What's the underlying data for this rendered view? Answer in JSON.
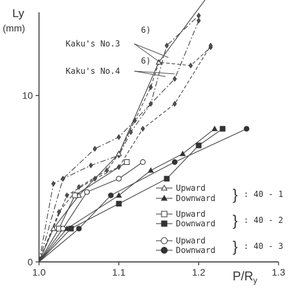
{
  "chart_data": {
    "type": "line",
    "ylabel_top": "Ly",
    "ylabel_unit": "(mm)",
    "xlabel": "P/R",
    "xlabel_sub": "y",
    "xlim": [
      1.0,
      1.3
    ],
    "ylim": [
      0,
      15
    ],
    "x_ticks": [
      {
        "v": 1.0,
        "label": "1.0"
      },
      {
        "v": 1.1,
        "label": "1.1"
      },
      {
        "v": 1.2,
        "label": "1.2"
      },
      {
        "v": 1.3,
        "label": "1.3"
      }
    ],
    "y_ticks": [
      {
        "v": 0,
        "label": "0"
      },
      {
        "v": 10,
        "label": "10"
      }
    ],
    "annotations": [
      {
        "text": "Kaku's No.3",
        "sup": "6)"
      },
      {
        "text": "Kaku's No.4",
        "sup": "6)"
      }
    ],
    "legend": {
      "groups": [
        {
          "label": ": 40 - 1",
          "upward": "Upward",
          "downward": "Downward"
        },
        {
          "label": ": 40 - 2",
          "upward": "Upward",
          "downward": "Downward"
        },
        {
          "label": ": 40 - 3",
          "upward": "Upward",
          "downward": "Downward"
        }
      ]
    },
    "series": [
      {
        "key": "k3a",
        "marker": "diamond",
        "dash": "8 3 2 3",
        "points": [
          [
            1.0,
            0
          ],
          [
            1.018,
            4.7
          ],
          [
            1.03,
            5.0
          ],
          [
            1.065,
            5.8
          ],
          [
            1.1,
            6.4
          ],
          [
            1.115,
            7.8
          ],
          [
            1.14,
            9.5
          ],
          [
            1.16,
            13.0
          ],
          [
            1.2,
            14.8
          ]
        ]
      },
      {
        "key": "k3b",
        "marker": "diamond",
        "dash": "8 3 2 3",
        "points": [
          [
            1.0,
            0
          ],
          [
            1.03,
            5.0
          ],
          [
            1.07,
            6.8
          ],
          [
            1.1,
            7.5
          ],
          [
            1.12,
            8.5
          ],
          [
            1.17,
            11.0
          ],
          [
            1.2,
            14.5
          ]
        ]
      },
      {
        "key": "k4a",
        "marker": "diamond",
        "dash": "5 3",
        "points": [
          [
            1.0,
            0
          ],
          [
            1.025,
            3.0
          ],
          [
            1.05,
            4.5
          ],
          [
            1.085,
            5.5
          ],
          [
            1.1,
            6.5
          ],
          [
            1.14,
            10.5
          ],
          [
            1.15,
            12.0
          ],
          [
            1.19,
            11.8
          ],
          [
            1.215,
            12.9
          ]
        ]
      },
      {
        "key": "k4b",
        "marker": "diamond",
        "dash": "5 3",
        "points": [
          [
            1.0,
            0
          ],
          [
            1.035,
            4.0
          ],
          [
            1.07,
            5.0
          ],
          [
            1.1,
            5.7
          ],
          [
            1.13,
            8.0
          ],
          [
            1.17,
            9.5
          ],
          [
            1.215,
            13.0
          ]
        ]
      },
      {
        "key": "s1u",
        "marker": "tri-open",
        "dash": "",
        "points": [
          [
            1.0,
            0
          ],
          [
            1.018,
            2.0
          ],
          [
            1.05,
            4.0
          ],
          [
            1.1,
            6.5
          ],
          [
            1.15,
            12.0
          ],
          [
            1.215,
            16.2
          ]
        ]
      },
      {
        "key": "s1d",
        "marker": "tri-filled",
        "dash": "",
        "points": [
          [
            1.0,
            0
          ],
          [
            1.035,
            2.0
          ],
          [
            1.1,
            4.0
          ],
          [
            1.14,
            5.5
          ],
          [
            1.18,
            6.5
          ],
          [
            1.22,
            8.0
          ]
        ]
      },
      {
        "key": "s2u",
        "marker": "sq-open",
        "dash": "",
        "points": [
          [
            1.0,
            0
          ],
          [
            1.025,
            2.0
          ],
          [
            1.045,
            4.0
          ],
          [
            1.11,
            6.0
          ]
        ]
      },
      {
        "key": "s2d",
        "marker": "sq-filled",
        "dash": "",
        "points": [
          [
            1.0,
            0
          ],
          [
            1.04,
            2.0
          ],
          [
            1.1,
            3.5
          ],
          [
            1.16,
            5.0
          ],
          [
            1.2,
            7.0
          ],
          [
            1.23,
            8.0
          ]
        ]
      },
      {
        "key": "s3u",
        "marker": "circ-open",
        "dash": "",
        "points": [
          [
            1.0,
            0
          ],
          [
            1.03,
            2.0
          ],
          [
            1.06,
            4.2
          ],
          [
            1.1,
            5.0
          ],
          [
            1.13,
            6.0
          ]
        ]
      },
      {
        "key": "s3d",
        "marker": "circ-filled",
        "dash": "",
        "points": [
          [
            1.0,
            0
          ],
          [
            1.05,
            2.0
          ],
          [
            1.09,
            4.0
          ],
          [
            1.17,
            6.0
          ],
          [
            1.26,
            8.0
          ]
        ]
      }
    ]
  }
}
